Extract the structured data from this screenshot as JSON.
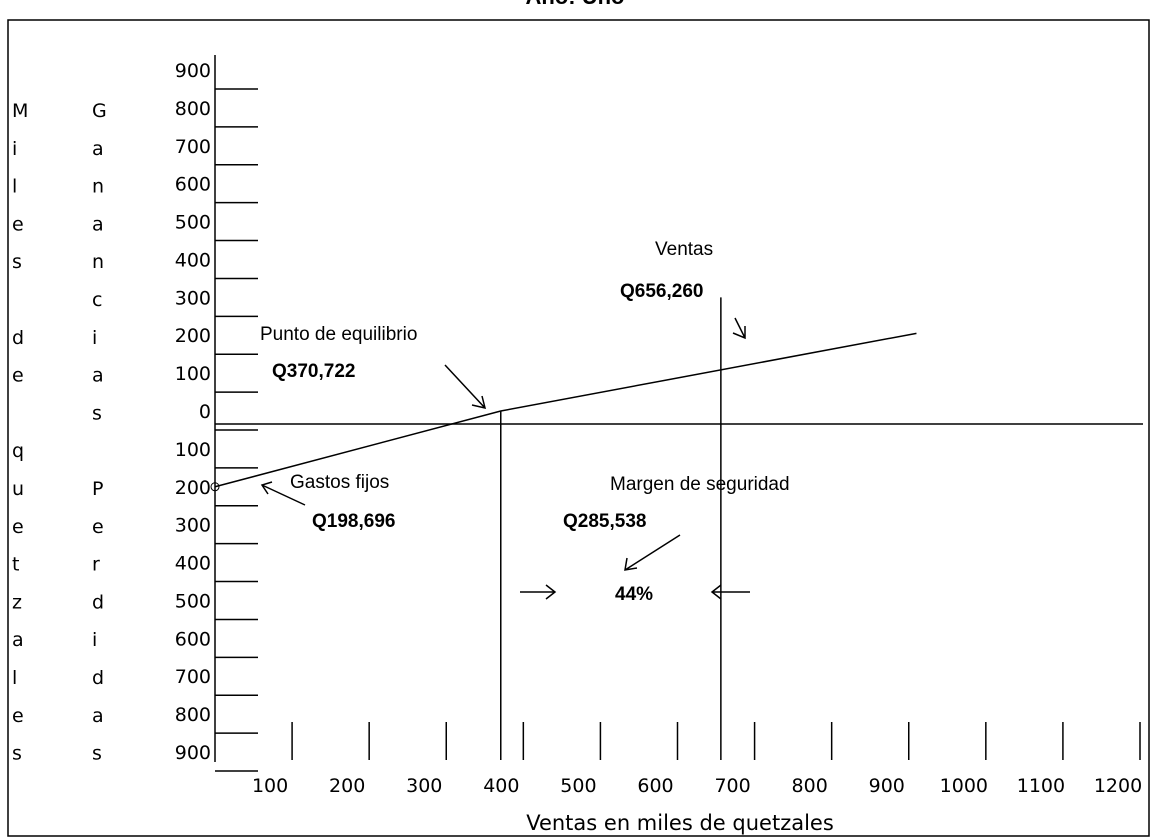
{
  "chart_data": {
    "type": "line",
    "title": "Año: Uno",
    "y_label_left": "Miles de quetzales",
    "y_label_right": "Ganancias Perdidas",
    "x_label": "Ventas en miles de quetzales",
    "xlim": [
      0,
      1200
    ],
    "ylim": [
      -900,
      900
    ],
    "xticks": [
      100,
      200,
      300,
      400,
      500,
      600,
      700,
      800,
      900,
      1000,
      1100,
      1200
    ],
    "yticks": [
      900,
      800,
      700,
      600,
      500,
      400,
      300,
      200,
      100,
      0,
      {
        "value": -100,
        "label": "100"
      },
      {
        "value": -200,
        "label": "200"
      },
      {
        "value": -300,
        "label": "300"
      },
      {
        "value": -400,
        "label": "400"
      },
      {
        "value": -500,
        "label": "500"
      },
      {
        "value": -600,
        "label": "600"
      },
      {
        "value": -700,
        "label": "700"
      },
      {
        "value": -800,
        "label": "800"
      },
      {
        "value": -900,
        "label": "900"
      }
    ],
    "x": [
      0,
      370.722,
      910
    ],
    "values": [
      -200,
      0,
      205
    ],
    "color": "#000000",
    "vlines": [
      {
        "x": 370.722,
        "from": -900,
        "to": 0
      },
      {
        "x": 656.26,
        "from": -900,
        "to": 300
      }
    ],
    "annotations": [
      "Ventas",
      "Q656,260",
      "Punto de equilibrio",
      "Q370,722",
      "Gastos fijos",
      "Q198,696",
      "Margen de seguridad",
      "Q285,538",
      "44%"
    ]
  }
}
